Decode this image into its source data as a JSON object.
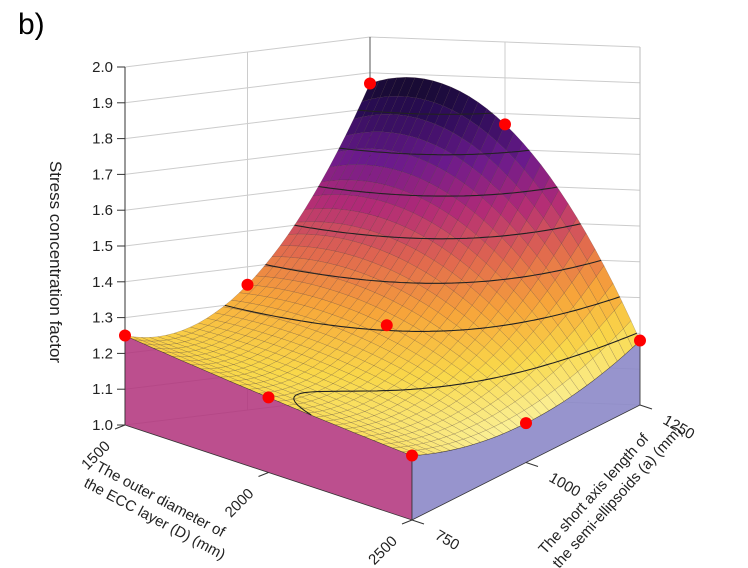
{
  "panel_label": "b)",
  "chart_data": {
    "type": "surface3d",
    "zlabel": "Stress concentration factor",
    "xlabel_lines": [
      "The outer diameter of",
      "the ECC layer (D) (mm)"
    ],
    "ylabel_lines": [
      "The short axis length of",
      "the semi-ellipsoids (a) (mm)"
    ],
    "x_ticks": [
      "1500",
      "2000",
      "2500"
    ],
    "y_ticks": [
      "750",
      "1000",
      "1250"
    ],
    "z_ticks": [
      "1.0",
      "1.1",
      "1.2",
      "1.3",
      "1.4",
      "1.5",
      "1.6",
      "1.7",
      "1.8",
      "1.9",
      "2.0"
    ],
    "xlim": [
      1500,
      2500
    ],
    "ylim": [
      750,
      1250
    ],
    "zlim": [
      1.0,
      2.0
    ],
    "design_points": [
      {
        "D": 1500,
        "a": 750,
        "scf": 1.25
      },
      {
        "D": 2000,
        "a": 750,
        "scf": 1.21
      },
      {
        "D": 2500,
        "a": 750,
        "scf": 1.18
      },
      {
        "D": 1500,
        "a": 1000,
        "scf": 1.35
      },
      {
        "D": 2000,
        "a": 1000,
        "scf": 1.31
      },
      {
        "D": 2500,
        "a": 1000,
        "scf": 1.11
      },
      {
        "D": 1500,
        "a": 1250,
        "scf": 1.87
      },
      {
        "D": 2000,
        "a": 1250,
        "scf": 1.77
      },
      {
        "D": 2500,
        "a": 1250,
        "scf": 1.18
      }
    ],
    "contour_levels": [
      1.2,
      1.3,
      1.4,
      1.5,
      1.6,
      1.7,
      1.8
    ],
    "colormap": [
      "#fbf3a0",
      "#f9d84a",
      "#f7a53a",
      "#e0664f",
      "#b12a77",
      "#6a1a8c",
      "#2a0c55",
      "#0a0a1a"
    ],
    "point_color": "#ff0000",
    "left_wall_color": "#b0307a",
    "right_wall_color": "#8c88c8"
  }
}
